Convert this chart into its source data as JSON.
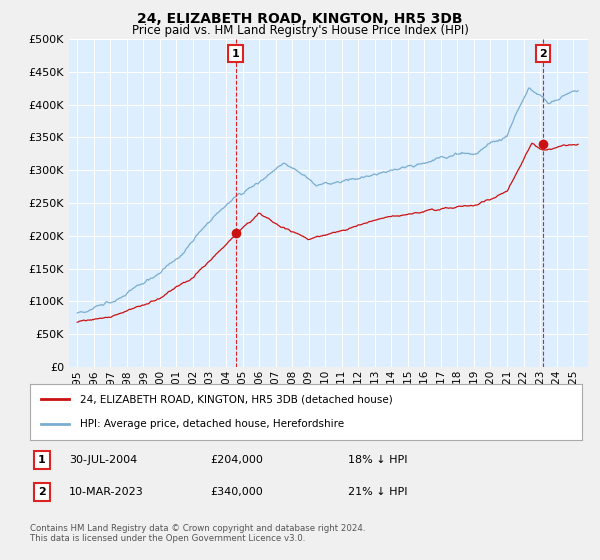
{
  "title": "24, ELIZABETH ROAD, KINGTON, HR5 3DB",
  "subtitle": "Price paid vs. HM Land Registry's House Price Index (HPI)",
  "hpi_label": "HPI: Average price, detached house, Herefordshire",
  "property_label": "24, ELIZABETH ROAD, KINGTON, HR5 3DB (detached house)",
  "annotation1_label": "1",
  "annotation1_date": "30-JUL-2004",
  "annotation1_price": "£204,000",
  "annotation1_hpi": "18% ↓ HPI",
  "annotation2_label": "2",
  "annotation2_date": "10-MAR-2023",
  "annotation2_price": "£340,000",
  "annotation2_hpi": "21% ↓ HPI",
  "footer": "Contains HM Land Registry data © Crown copyright and database right 2024.\nThis data is licensed under the Open Government Licence v3.0.",
  "hpi_color": "#7aadcf",
  "property_color": "#cc1111",
  "ylim": [
    0,
    500000
  ],
  "yticks": [
    0,
    50000,
    100000,
    150000,
    200000,
    250000,
    300000,
    350000,
    400000,
    450000,
    500000
  ],
  "plot_bg_color": "#ddeeff",
  "fig_bg_color": "#f0f0f0",
  "grid_color": "#ffffff",
  "ann_line_color": "#dd2222",
  "sale1_x": 2004.58,
  "sale1_y": 204000,
  "sale2_x": 2023.19,
  "sale2_y": 340000,
  "xmin": 1995,
  "xmax": 2025.5
}
